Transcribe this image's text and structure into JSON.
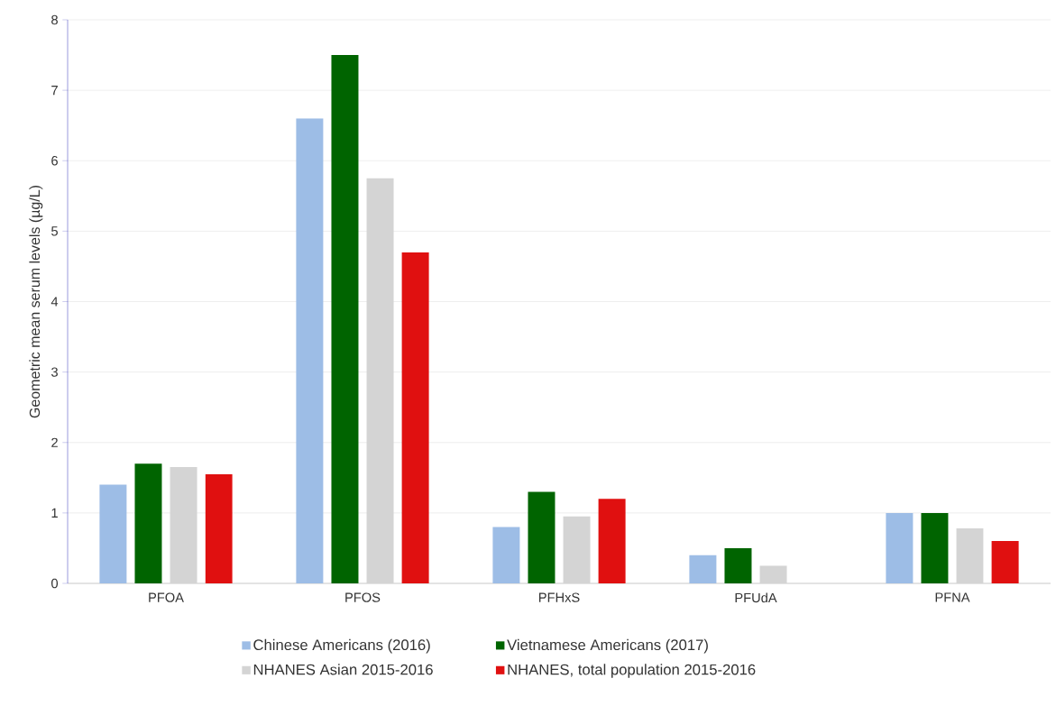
{
  "chart_data": {
    "type": "bar",
    "ylabel": "Geometric mean serum levels (µg/L)",
    "categories": [
      "PFOA",
      "PFOS",
      "PFHxS",
      "PFUdA",
      "PFNA"
    ],
    "series": [
      {
        "name": "Chinese Americans (2016)",
        "color": "#9dbde6",
        "values": [
          1.4,
          6.6,
          0.8,
          0.4,
          1.0
        ]
      },
      {
        "name": "Vietnamese Americans (2017)",
        "color": "#006400",
        "values": [
          1.7,
          7.5,
          1.3,
          0.5,
          1.0
        ]
      },
      {
        "name": "NHANES Asian 2015-2016",
        "color": "#d4d4d4",
        "values": [
          1.65,
          5.75,
          0.95,
          0.25,
          0.78
        ]
      },
      {
        "name": "NHANES, total population 2015-2016",
        "color": "#e01010",
        "values": [
          1.55,
          4.7,
          1.2,
          null,
          0.6
        ]
      }
    ],
    "ylim": [
      0,
      8
    ],
    "yticks": [
      0,
      1,
      2,
      3,
      4,
      5,
      6,
      7,
      8
    ],
    "grid": "y",
    "legend": "bottom"
  }
}
